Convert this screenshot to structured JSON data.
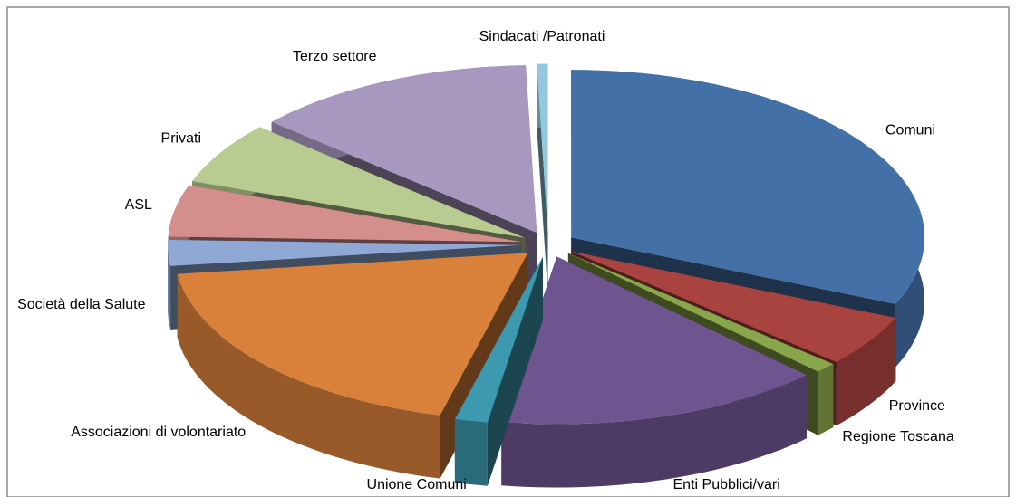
{
  "chart_data": {
    "type": "pie",
    "categories": [
      "Comuni",
      "Province",
      "Regione Toscana",
      "Enti Pubblici/vari",
      "Unione Comuni",
      "Associazioni  di volontariato",
      "Società della Salute",
      "ASL",
      "Privati",
      "Terzo settore",
      "Sindacati /Patronati"
    ],
    "values": [
      31.5,
      5,
      1,
      15,
      1.5,
      19,
      2.5,
      5,
      6,
      13,
      0.5
    ],
    "colors": [
      "#4470a8",
      "#a84340",
      "#8aa64a",
      "#6f5590",
      "#3c99b0",
      "#d9803a",
      "#8fa8d6",
      "#d48e8c",
      "#b8cc91",
      "#a898c0",
      "#93c8dc"
    ]
  }
}
